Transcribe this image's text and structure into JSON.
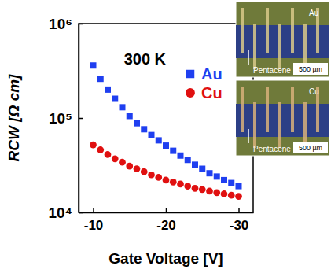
{
  "chart_data": {
    "type": "scatter",
    "title": "300 K",
    "x_label": "Gate Voltage [V]",
    "y_label": "RCW [Ω cm]",
    "x": [
      -10,
      -11,
      -12,
      -13,
      -14,
      -15,
      -16,
      -17,
      -18,
      -19,
      -20,
      -21,
      -22,
      -23,
      -24,
      -25,
      -26,
      -27,
      -28,
      -29,
      -30
    ],
    "series": [
      {
        "name": "Au",
        "color": "#1f3ff0",
        "marker": "square",
        "values": [
          360000,
          260000,
          200000,
          160000,
          130000,
          105000,
          88000,
          76000,
          66000,
          58000,
          51000,
          45000,
          40000,
          36000,
          32000,
          29000,
          26000,
          24000,
          22000,
          20500,
          19000
        ]
      },
      {
        "name": "Cu",
        "color": "#e01010",
        "marker": "circle",
        "values": [
          52000,
          46000,
          41000,
          37000,
          34000,
          31000,
          29000,
          27000,
          25000,
          23500,
          22000,
          21000,
          20000,
          19000,
          18000,
          17500,
          16800,
          16200,
          15700,
          15200,
          14800
        ]
      }
    ],
    "xlim": [
      -8,
      -32
    ],
    "xticks": [
      -10,
      -20,
      -30
    ],
    "ylim": [
      10000,
      1000000
    ],
    "yticks": [
      {
        "value": 10000,
        "label": "10⁴"
      },
      {
        "value": 100000,
        "label": "10⁵"
      },
      {
        "value": 1000000,
        "label": "10⁶"
      }
    ],
    "log": "y",
    "grid": false,
    "legend": "upper right",
    "insets": [
      {
        "metal": "Au",
        "film": "Pentacene",
        "scale_bar": "500 µm"
      },
      {
        "metal": "Cu",
        "film": "Pentacene",
        "scale_bar": "500 µm"
      }
    ]
  }
}
